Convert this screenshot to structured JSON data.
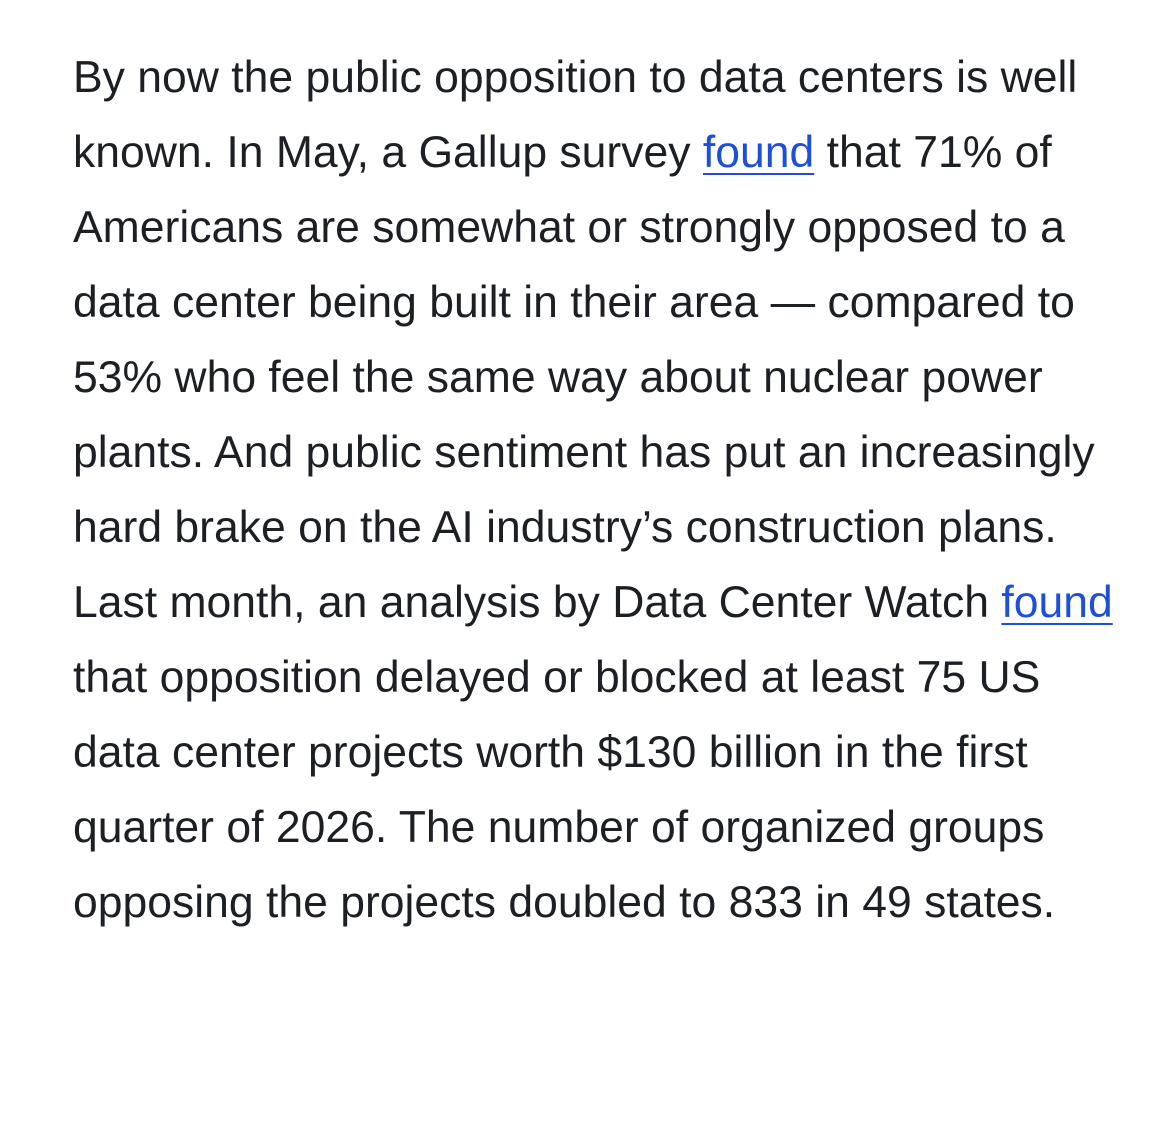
{
  "article": {
    "segments": [
      "By now the public opposition to data centers is well known. In May, a Gallup survey",
      "found",
      "that 71% of Americans are somewhat or strongly opposed to a data center being built in their area — compared to 53% who feel the same way about nuclear power plants. And public sentiment has put an increasingly hard brake on the AI industry’s construction plans. Last month, an analysis by Data Center Watch",
      "found",
      "that opposition delayed or blocked at least 75 US data center projects worth $130 billion in the first quarter of 2026. The number of organized groups opposing the projects doubled to 833 in 49 states."
    ]
  },
  "colors": {
    "text": "#1c1f24",
    "link": "#1d4fd8",
    "background": "#ffffff"
  }
}
